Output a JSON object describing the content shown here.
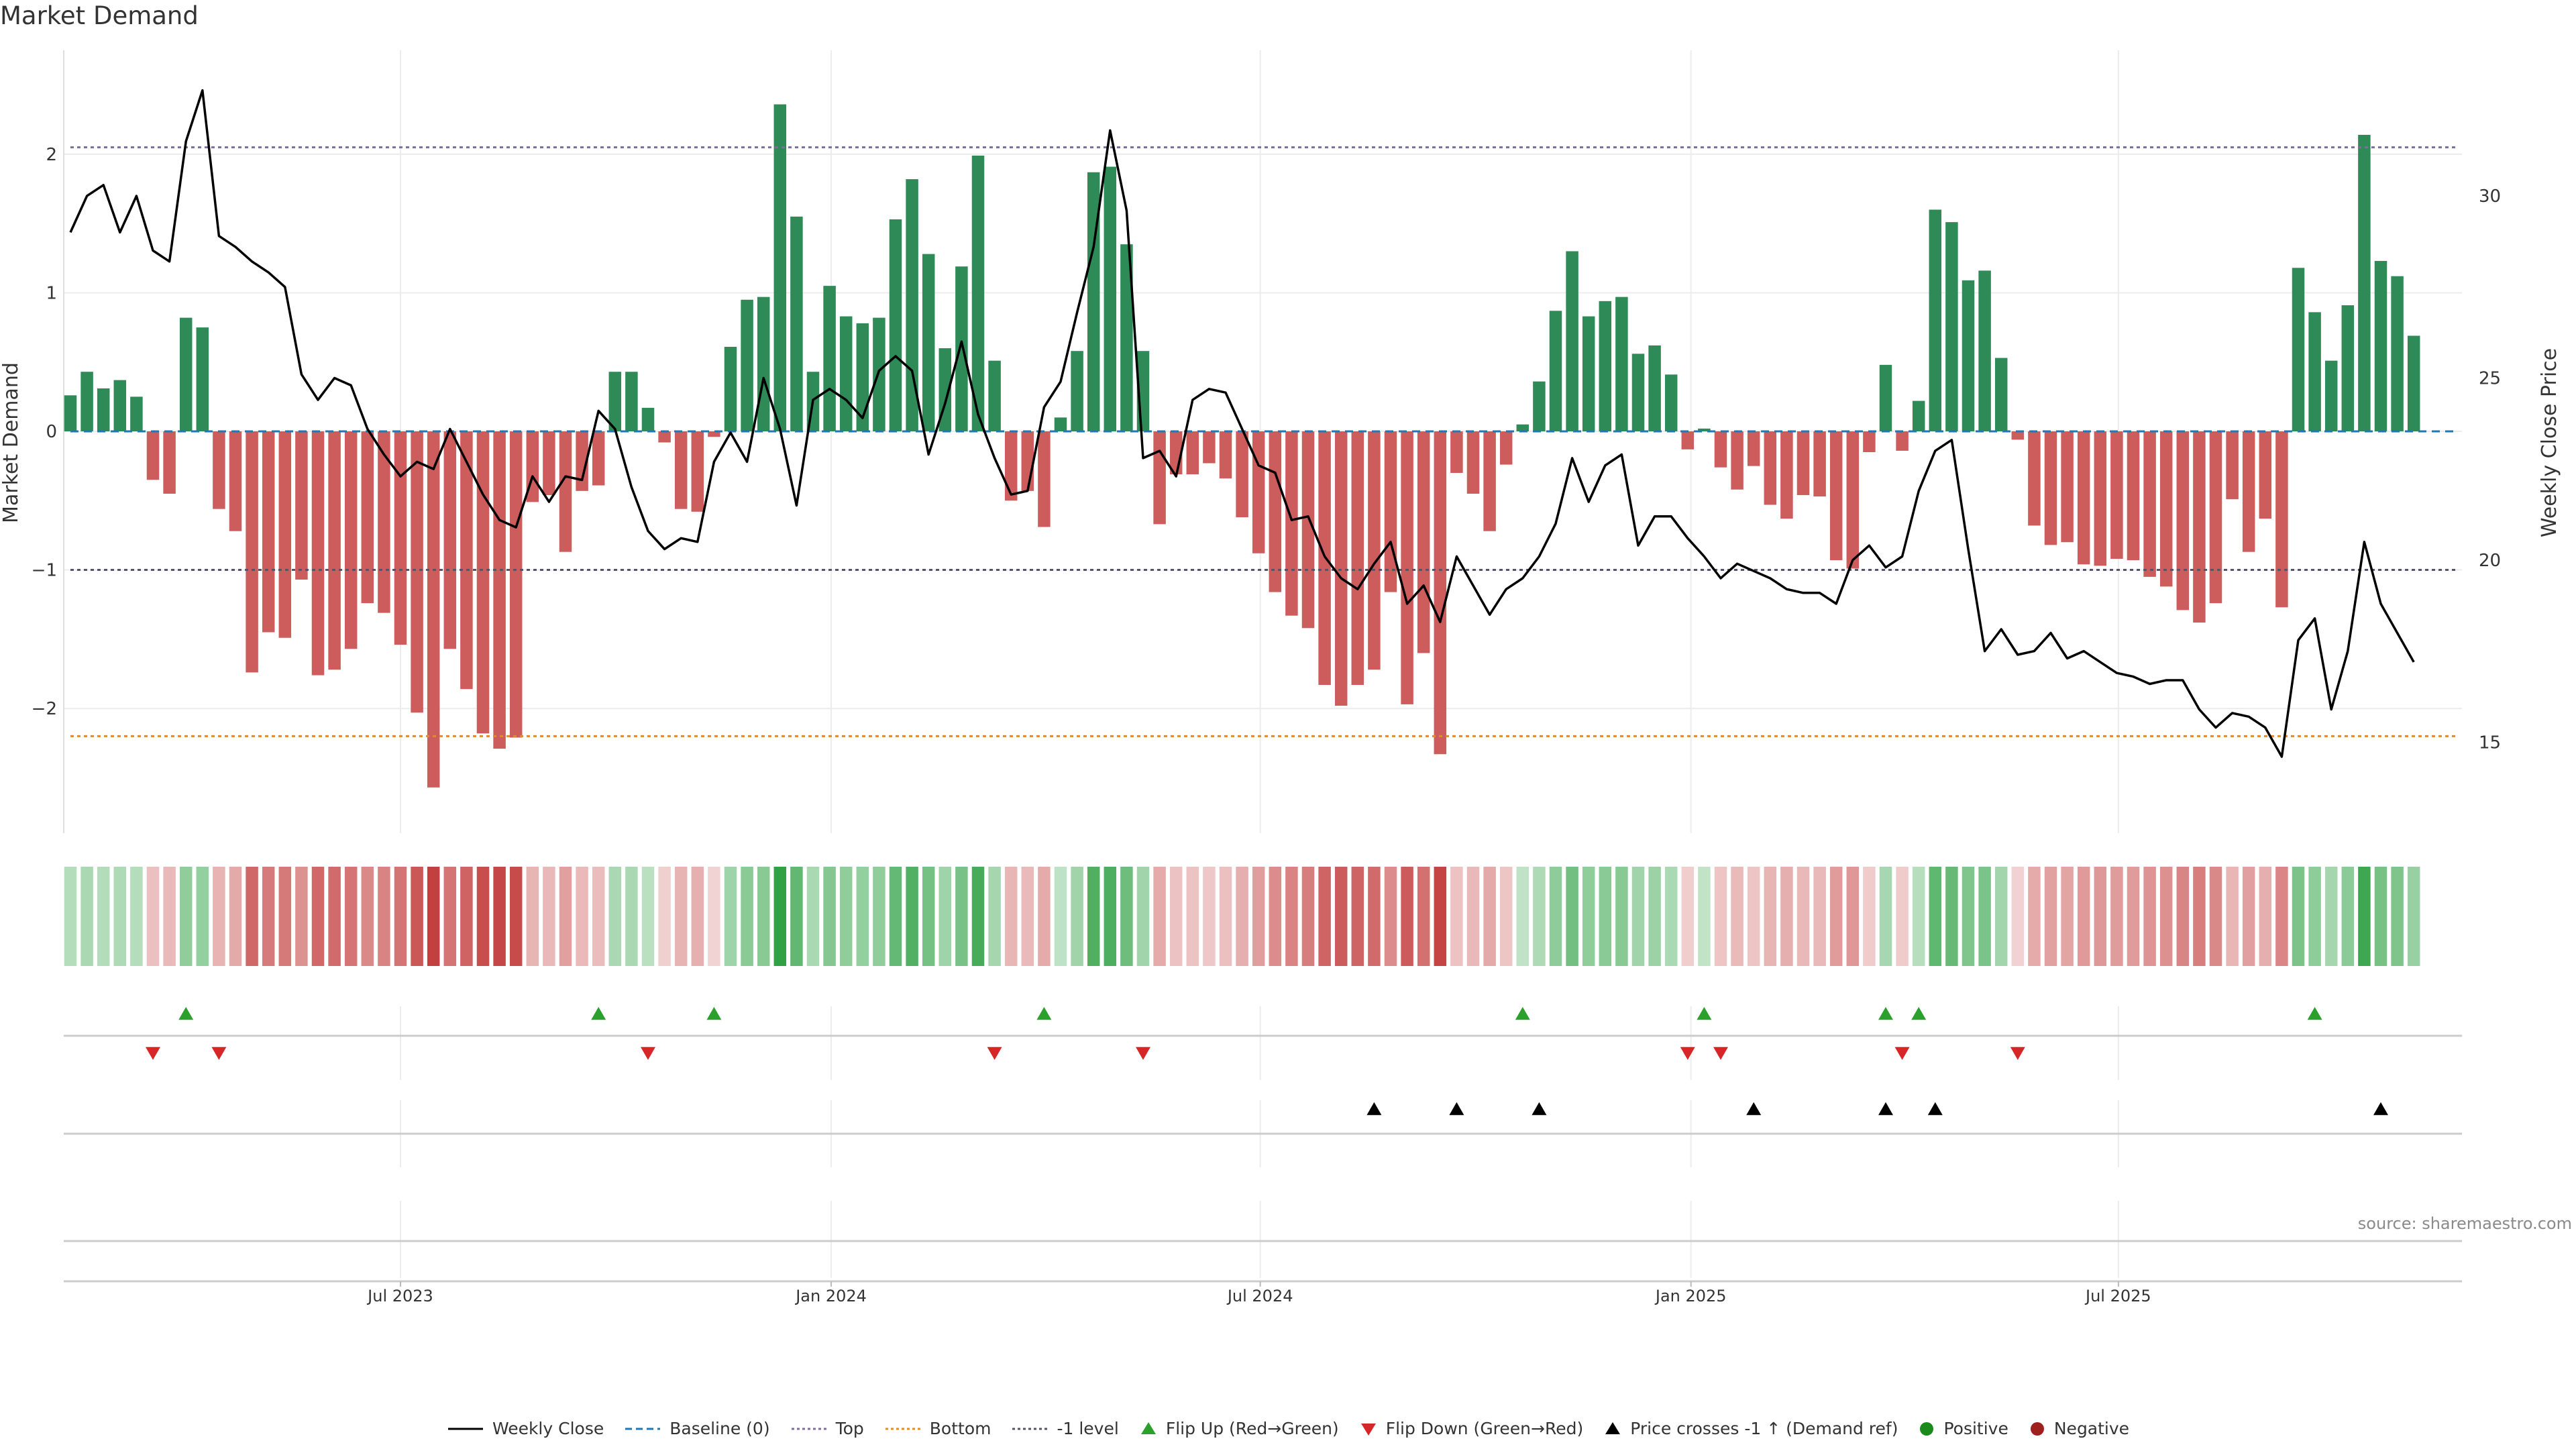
{
  "chart_data": {
    "type": "bar",
    "title": "Market Demand",
    "source": "source: sharemaestro.com",
    "ylabel_left": "Market Demand",
    "ylabel_right": "Weekly Close Price",
    "ylim_left": [
      -2.9,
      2.75
    ],
    "ylim_right": [
      12.5,
      34.0
    ],
    "yticks_left": [
      2,
      1,
      0,
      -1,
      -2
    ],
    "yticks_left_labels": [
      "2",
      "1",
      "0",
      "−1",
      "−2"
    ],
    "yticks_right": [
      30,
      25,
      20,
      15
    ],
    "yticks_right_labels": [
      "30",
      "25",
      "20",
      "15"
    ],
    "xticks": [
      {
        "label": "Jul 2023",
        "week": 20
      },
      {
        "label": "Jan 2024",
        "week": 46.1
      },
      {
        "label": "Jul 2024",
        "week": 72.1
      },
      {
        "label": "Jan 2025",
        "week": 98.2
      },
      {
        "label": "Jul 2025",
        "week": 124.1
      }
    ],
    "reference_lines": {
      "top": 2.05,
      "bottom": -2.2,
      "minus_one": -1,
      "baseline": 0
    },
    "demand": [
      0.26,
      0.43,
      0.31,
      0.37,
      0.25,
      -0.35,
      -0.45,
      0.82,
      0.75,
      -0.56,
      -0.72,
      -1.74,
      -1.45,
      -1.49,
      -1.07,
      -1.76,
      -1.72,
      -1.57,
      -1.24,
      -1.31,
      -1.54,
      -2.03,
      -2.57,
      -1.57,
      -1.86,
      -2.18,
      -2.29,
      -2.21,
      -0.51,
      -0.46,
      -0.87,
      -0.43,
      -0.39,
      0.43,
      0.43,
      0.17,
      -0.08,
      -0.56,
      -0.58,
      -0.04,
      0.61,
      0.95,
      0.97,
      2.36,
      1.55,
      0.43,
      1.05,
      0.83,
      0.78,
      0.82,
      1.53,
      1.82,
      1.28,
      0.6,
      1.19,
      1.99,
      0.51,
      -0.5,
      -0.43,
      -0.69,
      0.1,
      0.58,
      1.87,
      1.91,
      1.35,
      0.58,
      -0.67,
      -0.31,
      -0.31,
      -0.23,
      -0.34,
      -0.62,
      -0.88,
      -1.16,
      -1.33,
      -1.42,
      -1.83,
      -1.98,
      -1.83,
      -1.72,
      -1.16,
      -1.97,
      -1.6,
      -2.33,
      -0.3,
      -0.45,
      -0.72,
      -0.24,
      0.05,
      0.36,
      0.87,
      1.3,
      0.83,
      0.94,
      0.97,
      0.56,
      0.62,
      0.41,
      -0.13,
      0.02,
      -0.26,
      -0.42,
      -0.25,
      -0.53,
      -0.63,
      -0.46,
      -0.47,
      -0.93,
      -0.99,
      -0.15,
      0.48,
      -0.14,
      0.22,
      1.6,
      1.51,
      1.09,
      1.16,
      0.53,
      -0.06,
      -0.68,
      -0.82,
      -0.8,
      -0.96,
      -0.97,
      -0.92,
      -0.93,
      -1.05,
      -1.12,
      -1.29,
      -1.38,
      -1.24,
      -0.49,
      -0.87,
      -0.63,
      -1.27,
      1.18,
      0.86,
      0.51,
      0.91,
      2.14,
      1.23,
      1.12,
      0.69
    ],
    "weekly_close": [
      29.0,
      30.0,
      30.3,
      29.0,
      30.0,
      28.5,
      28.2,
      31.5,
      32.9,
      28.9,
      28.6,
      28.2,
      27.9,
      27.5,
      25.1,
      24.4,
      25.0,
      24.8,
      23.6,
      22.9,
      22.3,
      22.7,
      22.5,
      23.6,
      22.7,
      21.8,
      21.1,
      20.9,
      22.3,
      21.6,
      22.3,
      22.2,
      24.1,
      23.6,
      22.0,
      20.8,
      20.3,
      20.6,
      20.5,
      22.7,
      23.5,
      22.7,
      25.0,
      23.6,
      21.5,
      24.4,
      24.7,
      24.4,
      23.9,
      25.2,
      25.6,
      25.2,
      22.9,
      24.3,
      26.0,
      24.0,
      22.8,
      21.8,
      21.9,
      24.2,
      24.9,
      26.8,
      28.6,
      31.8,
      29.6,
      22.8,
      23.0,
      22.3,
      24.4,
      24.7,
      24.6,
      23.6,
      22.6,
      22.4,
      21.1,
      21.2,
      20.1,
      19.5,
      19.2,
      19.9,
      20.5,
      18.8,
      19.3,
      18.3,
      20.1,
      19.3,
      18.5,
      19.2,
      19.5,
      20.1,
      21.0,
      22.8,
      21.6,
      22.6,
      22.9,
      20.4,
      21.2,
      21.2,
      20.6,
      20.1,
      19.5,
      19.9,
      19.7,
      19.5,
      19.2,
      19.1,
      19.1,
      18.8,
      20.0,
      20.4,
      19.8,
      20.1,
      21.9,
      23.0,
      23.3,
      20.3,
      17.5,
      18.1,
      17.4,
      17.5,
      18.0,
      17.3,
      17.5,
      17.2,
      16.9,
      16.8,
      16.6,
      16.7,
      16.7,
      15.9,
      15.4,
      15.8,
      15.7,
      15.4,
      14.6,
      17.8,
      18.4,
      15.9,
      17.5,
      20.5,
      18.8,
      18.0,
      17.2
    ],
    "strip_cells": [
      0.26,
      0.43,
      0.31,
      0.37,
      0.25,
      -0.35,
      -0.45,
      0.82,
      0.75,
      -0.56,
      -0.72,
      -1.74,
      -1.45,
      -1.49,
      -1.07,
      -1.76,
      -1.72,
      -1.57,
      -1.24,
      -1.31,
      -1.54,
      -2.03,
      -2.57,
      -1.57,
      -1.86,
      -2.18,
      -2.29,
      -2.21,
      -0.51,
      -0.46,
      -0.87,
      -0.43,
      -0.39,
      0.43,
      0.43,
      0.17,
      -0.08,
      -0.56,
      -0.58,
      -0.04,
      0.61,
      0.95,
      0.97,
      2.36,
      1.55,
      0.43,
      1.05,
      0.83,
      0.78,
      0.82,
      1.53,
      1.82,
      1.28,
      0.6,
      1.19,
      1.99,
      0.51,
      -0.5,
      -0.43,
      -0.69,
      0.1,
      0.58,
      1.87,
      1.91,
      1.35,
      0.58,
      -0.67,
      -0.31,
      -0.31,
      -0.23,
      -0.34,
      -0.62,
      -0.88,
      -1.16,
      -1.33,
      -1.42,
      -1.83,
      -1.98,
      -1.83,
      -1.72,
      -1.16,
      -1.97,
      -1.6,
      -2.33,
      -0.3,
      -0.45,
      -0.72,
      -0.24,
      0.05,
      0.36,
      0.87,
      1.3,
      0.83,
      0.94,
      0.97,
      0.56,
      0.62,
      0.41,
      -0.13,
      0.02,
      -0.26,
      -0.42,
      -0.25,
      -0.53,
      -0.63,
      -0.46,
      -0.47,
      -0.93,
      -0.99,
      -0.15,
      0.48,
      -0.14,
      0.22,
      1.6,
      1.51,
      1.09,
      1.16,
      0.53,
      -0.06,
      -0.68,
      -0.82,
      -0.8,
      -0.96,
      -0.97,
      -0.92,
      -0.93,
      -1.05,
      -1.12,
      -1.29,
      -1.38,
      -1.24,
      -0.49,
      -0.87,
      -0.63,
      -1.27,
      1.18,
      0.86,
      0.51,
      0.91,
      2.14,
      1.23,
      1.12,
      0.69
    ],
    "flip_up_weeks": [
      7,
      32,
      39,
      59,
      88,
      99,
      110,
      112,
      136
    ],
    "flip_down_weeks": [
      5,
      9,
      35,
      56,
      65,
      98,
      100,
      111,
      118
    ],
    "price_cross_weeks": [
      79,
      84,
      89,
      102,
      110,
      113,
      140
    ],
    "colors": {
      "positive": "#2e8b57",
      "negative": "#cd5c5c",
      "price_line": "#000000",
      "top_line": "#7b6f9c",
      "bottom_line": "#e08b2c",
      "minus_one_line": "#555566",
      "baseline": "#1f77b4",
      "flip_up": "#2ca02c",
      "flip_down": "#d62728",
      "cross": "#000000",
      "grid": "#ececec",
      "positive_dot": "#1a8a1a",
      "negative_dot": "#a01f1f"
    },
    "legend": [
      {
        "label": "Weekly Close",
        "kind": "line",
        "color": "#000000",
        "dash": ""
      },
      {
        "label": "Baseline (0)",
        "kind": "line",
        "color": "#1f77b4",
        "dash": "10,6"
      },
      {
        "label": "Top",
        "kind": "line",
        "color": "#7b6f9c",
        "dash": "4,4"
      },
      {
        "label": "Bottom",
        "kind": "line",
        "color": "#e08b2c",
        "dash": "4,4"
      },
      {
        "label": "-1 level",
        "kind": "line",
        "color": "#555566",
        "dash": "4,4"
      },
      {
        "label": "Flip Up (Red→Green)",
        "kind": "tri-up",
        "color": "#2ca02c"
      },
      {
        "label": "Flip Down (Green→Red)",
        "kind": "tri-down",
        "color": "#d62728"
      },
      {
        "label": "Price crosses -1 ↑ (Demand ref)",
        "kind": "tri-up",
        "color": "#000000"
      },
      {
        "label": "Positive",
        "kind": "dot",
        "color": "#1a8a1a"
      },
      {
        "label": "Negative",
        "kind": "dot",
        "color": "#a01f1f"
      }
    ]
  }
}
